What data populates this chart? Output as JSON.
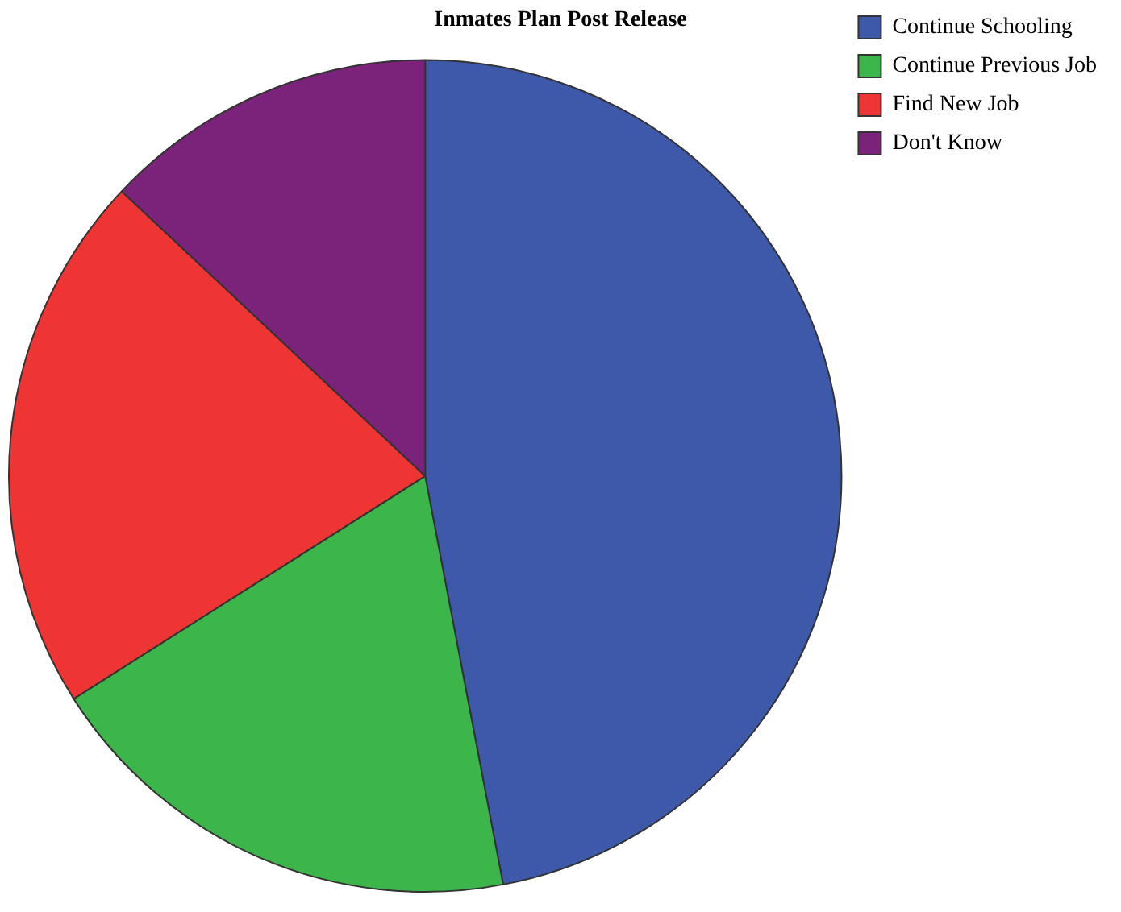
{
  "chart_data": {
    "type": "pie",
    "title": "Inmates Plan Post Release",
    "categories": [
      "Continue Schooling",
      "Continue Previous Job",
      "Find New Job",
      "Don't Know"
    ],
    "values": [
      47,
      19,
      21,
      13
    ],
    "colors": [
      "#3e58aa",
      "#3cb54a",
      "#ef3434",
      "#7b237a"
    ],
    "legend": "top right"
  }
}
